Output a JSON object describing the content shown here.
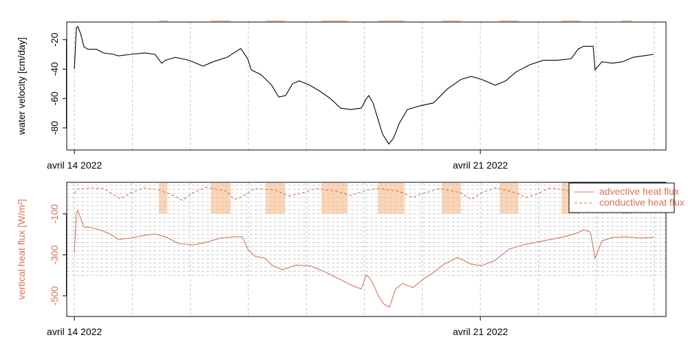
{
  "chart_data": [
    {
      "type": "line",
      "ylabel": "water velocity [cm/day]",
      "xlim": [
        "2022-04-13 20:50",
        "2022-04-24 04:50"
      ],
      "xticks": [
        {
          "value": "2022-04-14",
          "label": "avril 14 2022"
        },
        {
          "value": "2022-04-21",
          "label": "avril 21 2022"
        }
      ],
      "xgrid": [
        "2022-04-14",
        "2022-04-15",
        "2022-04-16",
        "2022-04-17",
        "2022-04-18",
        "2022-04-19",
        "2022-04-20",
        "2022-04-21",
        "2022-04-22",
        "2022-04-23",
        "2022-04-24"
      ],
      "xgrid_color": "#9fd8e2",
      "ylim": [
        -95,
        -8
      ],
      "yticks": [
        -80,
        -60,
        -40,
        -20
      ],
      "bands": [
        [
          "2022-04-15 11:00",
          "2022-04-15 14:30"
        ],
        [
          "2022-04-16 08:25",
          "2022-04-16 16:40"
        ],
        [
          "2022-04-17 07:10",
          "2022-04-17 15:10"
        ],
        [
          "2022-04-18 06:15",
          "2022-04-18 17:00"
        ],
        [
          "2022-04-19 05:35",
          "2022-04-19 16:35"
        ],
        [
          "2022-04-20 08:00",
          "2022-04-20 16:00"
        ],
        [
          "2022-04-21 08:00",
          "2022-04-21 15:50"
        ],
        [
          "2022-04-22 09:35",
          "2022-04-22 17:15"
        ],
        [
          "2022-04-23 10:20",
          "2022-04-23 14:50"
        ]
      ],
      "band_color": "#fdd5b4",
      "label_color": "#000000",
      "series": [
        {
          "name": "water velocity",
          "color": "#000000",
          "x": [
            "2022-04-14 00:00",
            "2022-04-14 00:50",
            "2022-04-14 01:25",
            "2022-04-14 02:35",
            "2022-04-14 04:00",
            "2022-04-14 05:40",
            "2022-04-14 09:05",
            "2022-04-14 12:00",
            "2022-04-14 16:15",
            "2022-04-14 18:10",
            "2022-04-14 23:20",
            "2022-04-15 05:00",
            "2022-04-15 09:20",
            "2022-04-15 12:10",
            "2022-04-15 13:35",
            "2022-04-15 17:50",
            "2022-04-15 23:30",
            "2022-04-16 05:15",
            "2022-04-16 09:30",
            "2022-04-16 15:10",
            "2022-04-16 20:50",
            "2022-04-16 23:45",
            "2022-04-17 01:10",
            "2022-04-17 05:25",
            "2022-04-17 09:40",
            "2022-04-17 12:35",
            "2022-04-17 15:25",
            "2022-04-17 18:15",
            "2022-04-17 21:05",
            "2022-04-18 01:25",
            "2022-04-18 05:35",
            "2022-04-18 09:55",
            "2022-04-18 14:10",
            "2022-04-18 18:25",
            "2022-04-18 22:45",
            "2022-04-19 00:40",
            "2022-04-19 01:50",
            "2022-04-19 03:35",
            "2022-04-19 05:15",
            "2022-04-19 07:30",
            "2022-04-19 10:05",
            "2022-04-19 12:05",
            "2022-04-19 14:25",
            "2022-04-19 17:50",
            "2022-04-19 22:55",
            "2022-04-20 04:35",
            "2022-04-20 10:20",
            "2022-04-20 16:00",
            "2022-04-20 20:15",
            "2022-04-21 00:30",
            "2022-04-21 06:15",
            "2022-04-21 10:30",
            "2022-04-21 14:45",
            "2022-04-21 20:30",
            "2022-04-22 02:10",
            "2022-04-22 07:55",
            "2022-04-22 13:35",
            "2022-04-22 16:25",
            "2022-04-22 18:40",
            "2022-04-22 22:40",
            "2022-04-22 23:30",
            "2022-04-23 02:20",
            "2022-04-23 06:40",
            "2022-04-23 10:55",
            "2022-04-23 15:10",
            "2022-04-23 19:25",
            "2022-04-23 23:40"
          ],
          "values": [
            -40,
            -12,
            -11,
            -16,
            -25,
            -26.5,
            -26.5,
            -29,
            -30,
            -31,
            -30,
            -29,
            -30,
            -36,
            -34,
            -32,
            -34,
            -38,
            -35,
            -32,
            -26,
            -33,
            -40.5,
            -44,
            -51,
            -59,
            -58,
            -50,
            -48,
            -51,
            -55,
            -60,
            -66.5,
            -67.5,
            -66.5,
            -60.5,
            -58,
            -63,
            -72,
            -84,
            -91,
            -87,
            -77,
            -67.5,
            -65,
            -63,
            -53.5,
            -47,
            -45,
            -47,
            -51,
            -48,
            -42,
            -37,
            -34,
            -34,
            -33,
            -26.5,
            -24.5,
            -24.5,
            -40.5,
            -35,
            -36,
            -35,
            -32,
            -31,
            -30
          ]
        }
      ]
    },
    {
      "type": "line",
      "ylabel": "vertical heat flux [W/m²]",
      "xlim": [
        "2022-04-13 20:50",
        "2022-04-24 04:50"
      ],
      "xticks": [
        {
          "value": "2022-04-14",
          "label": "avril 14 2022"
        },
        {
          "value": "2022-04-21",
          "label": "avril 21 2022"
        }
      ],
      "xgrid": [
        "2022-04-14",
        "2022-04-15",
        "2022-04-16",
        "2022-04-17",
        "2022-04-18",
        "2022-04-19",
        "2022-04-20",
        "2022-04-21",
        "2022-04-22",
        "2022-04-23",
        "2022-04-24"
      ],
      "xgrid_color": "#9fd8e2",
      "ylim": [
        -601,
        54
      ],
      "yticks": [
        -500,
        -300,
        -100
      ],
      "ygrid": [
        40,
        20,
        0,
        -20,
        -40,
        -60,
        -80,
        -100,
        -120,
        -140,
        -160,
        -180,
        -200,
        -220,
        -240,
        -260,
        -280,
        -300,
        -320,
        -340,
        -360,
        -380,
        -400
      ],
      "ygrid_color": "#c8c8c8",
      "bands": [
        [
          "2022-04-15 11:00",
          "2022-04-15 14:30"
        ],
        [
          "2022-04-16 08:25",
          "2022-04-16 16:40"
        ],
        [
          "2022-04-17 07:10",
          "2022-04-17 15:10"
        ],
        [
          "2022-04-18 06:15",
          "2022-04-18 17:00"
        ],
        [
          "2022-04-19 05:35",
          "2022-04-19 16:35"
        ],
        [
          "2022-04-20 08:00",
          "2022-04-20 16:00"
        ],
        [
          "2022-04-21 08:00",
          "2022-04-21 15:50"
        ],
        [
          "2022-04-22 09:35",
          "2022-04-22 17:15"
        ],
        [
          "2022-04-23 10:20",
          "2022-04-23 14:50"
        ]
      ],
      "band_color": "#fdd5b4",
      "band_floor": -100,
      "label_color": "#d4735a",
      "legend": "topright",
      "series": [
        {
          "name": "advective heat flux",
          "color": "#d4735a",
          "dash": "solid",
          "x": [
            "2022-04-14 00:00",
            "2022-04-14 00:50",
            "2022-04-14 01:25",
            "2022-04-14 02:50",
            "2022-04-14 04:00",
            "2022-04-14 06:15",
            "2022-04-14 10:30",
            "2022-04-14 14:50",
            "2022-04-14 18:10",
            "2022-04-14 23:20",
            "2022-04-15 05:00",
            "2022-04-15 09:20",
            "2022-04-15 13:35",
            "2022-04-15 19:15",
            "2022-04-16 01:00",
            "2022-04-16 06:40",
            "2022-04-16 12:25",
            "2022-04-16 18:05",
            "2022-04-16 21:30",
            "2022-04-16 23:45",
            "2022-04-17 02:35",
            "2022-04-17 06:50",
            "2022-04-17 09:40",
            "2022-04-17 14:00",
            "2022-04-17 19:40",
            "2022-04-18 01:25",
            "2022-04-18 07:05",
            "2022-04-18 12:45",
            "2022-04-18 18:25",
            "2022-04-18 22:45",
            "2022-04-19 00:40",
            "2022-04-19 01:50",
            "2022-04-19 03:35",
            "2022-04-19 05:50",
            "2022-04-19 08:05",
            "2022-04-19 10:25",
            "2022-04-19 12:55",
            "2022-04-19 15:50",
            "2022-04-19 20:05",
            "2022-04-20 00:20",
            "2022-04-20 04:35",
            "2022-04-20 08:55",
            "2022-04-20 14:35",
            "2022-04-20 20:15",
            "2022-04-21 00:30",
            "2022-04-21 06:15",
            "2022-04-21 11:55",
            "2022-04-21 17:35",
            "2022-04-22 02:10",
            "2022-04-22 10:40",
            "2022-04-22 16:25",
            "2022-04-22 18:40",
            "2022-04-22 21:30",
            "2022-04-22 23:30",
            "2022-04-23 02:20",
            "2022-04-23 06:40",
            "2022-04-23 12:20",
            "2022-04-23 18:00",
            "2022-04-23 23:40"
          ],
          "values": [
            -292,
            -97,
            -84,
            -131,
            -165,
            -165,
            -178,
            -198,
            -225,
            -218,
            -205,
            -198,
            -212,
            -245,
            -252,
            -239,
            -218,
            -212,
            -212,
            -272,
            -306,
            -316,
            -350,
            -373,
            -350,
            -353,
            -380,
            -413,
            -447,
            -467,
            -400,
            -407,
            -440,
            -501,
            -541,
            -555,
            -467,
            -440,
            -460,
            -420,
            -387,
            -346,
            -313,
            -346,
            -353,
            -326,
            -272,
            -252,
            -232,
            -212,
            -192,
            -178,
            -188,
            -316,
            -232,
            -215,
            -212,
            -218,
            -215
          ]
        },
        {
          "name": "conductive heat flux",
          "color": "#d4735a",
          "dash": "dashed",
          "x": [
            "2022-04-14 00:00",
            "2022-04-14 01:05",
            "2022-04-14 06:15",
            "2022-04-14 12:00",
            "2022-04-14 16:15",
            "2022-04-14 19:05",
            "2022-04-14 23:20",
            "2022-04-15 05:00",
            "2022-04-15 10:45",
            "2022-04-15 16:25",
            "2022-04-15 20:40",
            "2022-04-16 01:00",
            "2022-04-16 06:40",
            "2022-04-16 15:10",
            "2022-04-16 18:05",
            "2022-04-16 20:50",
            "2022-04-17 02:35",
            "2022-04-17 11:05",
            "2022-04-17 16:50",
            "2022-04-17 22:30",
            "2022-04-18 04:10",
            "2022-04-18 12:45",
            "2022-04-18 18:25",
            "2022-04-19 00:05",
            "2022-04-19 05:50",
            "2022-04-19 14:25",
            "2022-04-19 20:05",
            "2022-04-19 23:35",
            "2022-04-20 07:10",
            "2022-04-20 16:00",
            "2022-04-20 20:15",
            "2022-04-21 00:30",
            "2022-04-21 06:15",
            "2022-04-21 14:45",
            "2022-04-21 19:00",
            "2022-04-21 23:20",
            "2022-04-22 05:00",
            "2022-04-22 10:40",
            "2022-04-22 13:35"
          ],
          "values": [
            0,
            20,
            27,
            24,
            -7,
            -27,
            3,
            27,
            17,
            -7,
            -34,
            3,
            30,
            10,
            -30,
            -20,
            24,
            17,
            -13,
            3,
            24,
            10,
            -10,
            13,
            24,
            10,
            -20,
            -3,
            24,
            3,
            -30,
            3,
            27,
            3,
            -20,
            -3,
            27,
            17,
            10
          ]
        }
      ]
    }
  ]
}
